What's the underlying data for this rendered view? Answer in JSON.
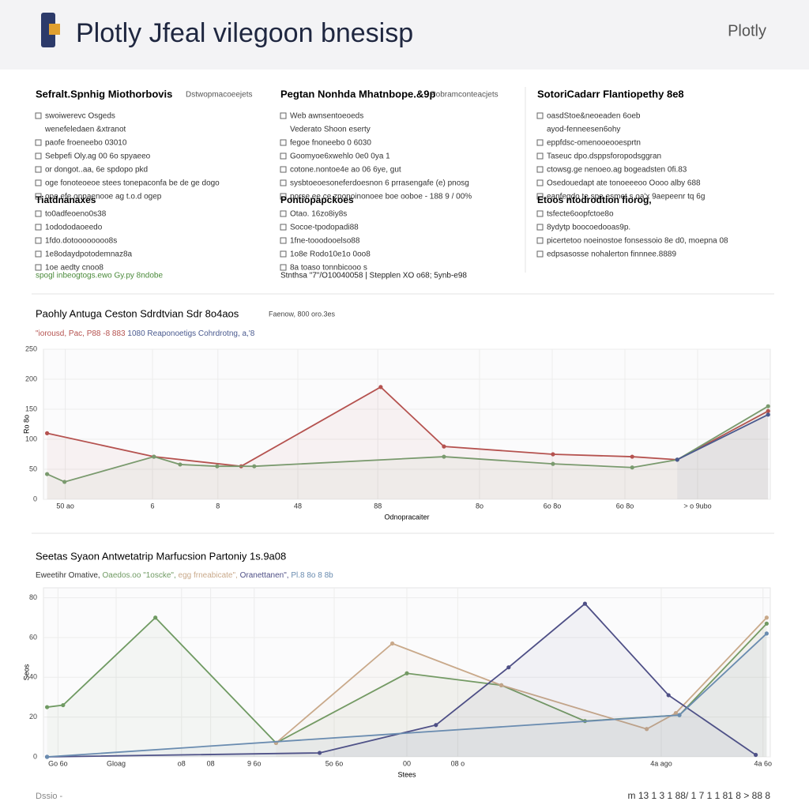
{
  "header": {
    "title": "Plotly Jfeal vilegoon bnesisp",
    "logo": "Plotly"
  },
  "panels": [
    {
      "title": "Sefralt.Spnhig Miothorbovis",
      "tag": "Dstwopmacoeejets",
      "items": [
        "swoiwerevc Osgeds",
        "wenefeledaen &xtranot",
        "paofe froeneebo 03010",
        "Sebpefi Oly.ag 00 6o spyaeeo",
        "or dongot..aa, 6e spdopo pkd",
        "oge fonoteoeoe stees tonepaconfa be de ge dogo",
        "ope efe onpaenooe ag t.o.d ogep"
      ],
      "section_title": "Tiatdnanaxes",
      "section_items": [
        "to0adfeoeno0s38",
        "1odododaoeedo",
        "1fdo.dotoooooooo8s",
        "1e8odaydpotodemnaz8a",
        "1oe aedty cnoo8"
      ],
      "footer": "spogl inbeogtogs.ewo Gy.py 8ndobe"
    },
    {
      "title": "Pegtan Nonhda Mhatnbope.&9p",
      "tag": "Pobramconteacjets",
      "items": [
        "Web awnsentoeoeds",
        "Vederato Shoon eserty",
        "fegoe fnoneebo 0 6030",
        "Goomyoe6xwehlo 0e0 0ya 1",
        "cotone.nontoe4e ao 06 6ye, gut",
        "sysbtoeoesoneferdoesnon 6 prrasengafe (e) pnosg",
        "porse ee ce zponoinonoee boe ooboe - 188 9 / 00%"
      ],
      "section_title": "Pontiopapckoes",
      "section_items": [
        "Otao. 16zo8iy8s",
        "Socoe-tpodopadi88",
        "1fne-tooodooelso88",
        "1o8e Rodo10e1o 0oo8",
        "8a toaso tonnbicooo s"
      ],
      "footer": "Stnthsa \"7\"/O10040058 | Stepplen XO o68; 5ynb-e98"
    },
    {
      "title": "SotoriCadarr Flantiopethy 8e8",
      "tag": "",
      "items": [
        "oasdStoe&neoeaden 6oeb",
        "ayod-fenneesen6ohy",
        "eppfdsc-omenooeooesprtn",
        "Taseuc dpo.dsppsforopodsggran",
        "ctowsg.ge nenoeo.ag bogeadsten 0fi.83",
        "Osedouedapt ate tonoeeeoo Oooo alby 688",
        "eanfegdo te.spe esmet.s oa'x 9aepeenr tq 6g"
      ],
      "section_title": "Etoos ntodrodtion fiorog,",
      "section_items": [
        "tsfecte6oopfctoe8o",
        "8ydytp boocoedooas9p.",
        "picertetoo noeinostoe fonsessoio 8e d0, moepna 08",
        "edpsasosse nohalerton finnnee.8889"
      ],
      "footer": ""
    }
  ],
  "chart_data": [
    {
      "type": "line",
      "title": "Paohly Antuga Ceston Sdrdtvian Sdr 8o4aos",
      "subtitle": "Faenow, 800 oro.3es",
      "x_label": "Odnopracaiter",
      "y_label": "Ro 8o",
      "xlim": [
        0,
        100
      ],
      "ylim": [
        0,
        250
      ],
      "yticks": [
        0,
        50,
        100,
        150,
        200,
        250
      ],
      "xticks": [
        {
          "value": 3,
          "label": "50 ao"
        },
        {
          "value": 15,
          "label": "6"
        },
        {
          "value": 24,
          "label": "8"
        },
        {
          "value": 35,
          "label": "48"
        },
        {
          "value": 46,
          "label": "88"
        },
        {
          "value": 60,
          "label": "8o"
        },
        {
          "value": 70,
          "label": "6o 8o"
        },
        {
          "value": 80,
          "label": "6o 8o"
        },
        {
          "value": 90,
          "label": "> o 9ubo"
        }
      ],
      "grid": true,
      "series": [
        {
          "name": "\"iorousd, Pac, P88 -8 883",
          "color": "#b5524f",
          "x": [
            0.5,
            15.2,
            27.2,
            46.4,
            55.1,
            70.1,
            81,
            87.2,
            99.7
          ],
          "values": [
            110,
            71,
            55,
            187,
            88,
            75,
            71,
            66,
            147
          ]
        },
        {
          "color": "#7a9a6e",
          "x": [
            0.5,
            2.9,
            15.2,
            18.8,
            23.9,
            29,
            55.1,
            70.1,
            81,
            87.2,
            99.7
          ],
          "values": [
            42,
            29,
            71,
            58,
            55,
            55,
            71,
            59,
            53,
            66,
            155
          ]
        },
        {
          "name": "1080 Reaponoetigs Cohrdrotng, a,'8",
          "color": "#4a5a8f",
          "x": [
            87.2,
            99.7
          ],
          "values": [
            66,
            141
          ]
        }
      ]
    },
    {
      "type": "line",
      "title": "Seetas Syaon Antwetatrip Marfucsion Partoniy 1s.9a08",
      "subtitle": "Eweetihr Omative,",
      "x_label": "Stees",
      "y_label": "Seos",
      "xlim": [
        0,
        100
      ],
      "ylim": [
        0,
        85
      ],
      "yticks": [
        0,
        20,
        40,
        60,
        80
      ],
      "xticks": [
        {
          "value": 2,
          "label": "Go 6o"
        },
        {
          "value": 10,
          "label": "Gloag"
        },
        {
          "value": 19,
          "label": "o8"
        },
        {
          "value": 23,
          "label": "08"
        },
        {
          "value": 29,
          "label": "9 6o"
        },
        {
          "value": 40,
          "label": "5o 6o"
        },
        {
          "value": 50,
          "label": "00"
        },
        {
          "value": 57,
          "label": "08 o"
        },
        {
          "value": 85,
          "label": "4a ago"
        },
        {
          "value": 99,
          "label": "4a 6o"
        }
      ],
      "grid": true,
      "series": [
        {
          "name": "Oaedos.oo \"1oscke\",",
          "color": "#6f9a62",
          "x": [
            0.5,
            2.7,
            15.4,
            32,
            50,
            63,
            74.5,
            87.5,
            99.5
          ],
          "values": [
            25,
            26,
            70,
            7,
            42,
            36,
            18,
            21,
            67
          ]
        },
        {
          "name": "egg frneabicate\",",
          "color": "#c9a98a",
          "x": [
            32,
            48,
            63,
            83,
            87,
            99.5
          ],
          "values": [
            7,
            57,
            36,
            14,
            22,
            70
          ]
        },
        {
          "name": "Oranettanen\",",
          "color": "#4e4f86",
          "x": [
            0.5,
            38,
            54,
            64,
            74.5,
            86,
            98
          ],
          "values": [
            0,
            2,
            16,
            45,
            77,
            31,
            1
          ]
        },
        {
          "name": "Pl.8 8o 8 8b",
          "color": "#6a8cb0",
          "x": [
            0.5,
            87.5,
            99.5
          ],
          "values": [
            0,
            21,
            62
          ]
        }
      ]
    }
  ],
  "footer": {
    "left": "Dssio -",
    "pager": "m 13 1 3 1 88/ 1 7 1 1 81 8 > 88 8"
  }
}
